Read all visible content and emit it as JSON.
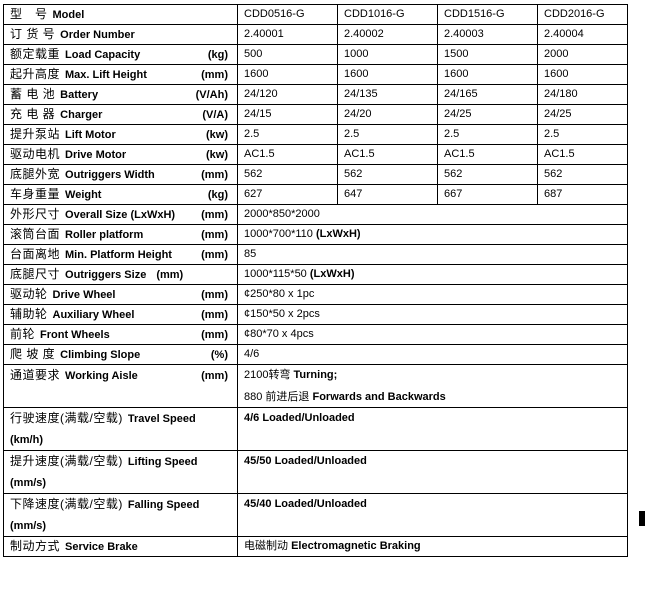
{
  "colors": {
    "border": "#000000",
    "background": "#ffffff",
    "text": "#000000"
  },
  "table": {
    "rows": [
      {
        "zh": "型　号",
        "en": "Model",
        "unit": "",
        "values": [
          "CDD0516-G",
          "CDD1016-G",
          "CDD1516-G",
          "CDD2016-G"
        ]
      },
      {
        "zh": "订 货 号",
        "en": "Order Number",
        "unit": "",
        "values": [
          "2.40001",
          "2.40002",
          "2.40003",
          "2.40004"
        ]
      },
      {
        "zh": "额定载重",
        "en": "Load Capacity",
        "unit": "(kg)",
        "values": [
          "500",
          "1000",
          "1500",
          "2000"
        ]
      },
      {
        "zh": "起升高度",
        "en": "Max. Lift Height",
        "unit": "(mm)",
        "values": [
          "1600",
          "1600",
          "1600",
          "1600"
        ]
      },
      {
        "zh": "蓄 电 池",
        "en": "Battery",
        "unit": "(V/Ah)",
        "values": [
          "24/120",
          "24/135",
          "24/165",
          "24/180"
        ]
      },
      {
        "zh": "充 电 器",
        "en": "Charger",
        "unit": "(V/A)",
        "values": [
          "24/15",
          "24/20",
          "24/25",
          "24/25"
        ]
      },
      {
        "zh": "提升泵站",
        "en": "Lift Motor",
        "unit": "(kw)",
        "values": [
          "2.5",
          "2.5",
          "2.5",
          "2.5"
        ]
      },
      {
        "zh": "驱动电机",
        "en": "Drive Motor",
        "unit": "(kw)",
        "values": [
          "AC1.5",
          "AC1.5",
          "AC1.5",
          "AC1.5"
        ]
      },
      {
        "zh": "底腿外宽",
        "en": "Outriggers Width",
        "unit": "(mm)",
        "values": [
          "562",
          "562",
          "562",
          "562"
        ]
      },
      {
        "zh": "车身重量",
        "en": "Weight",
        "unit": "(kg)",
        "values": [
          "627",
          "647",
          "667",
          "687"
        ]
      },
      {
        "zh": "外形尺寸",
        "en": "Overall Size (LxWxH)",
        "unit": "(mm)",
        "value_lines": [
          [
            {
              "t": "2000*850*2000",
              "b": false
            }
          ]
        ]
      },
      {
        "zh": "滚筒台面",
        "en": "Roller platform",
        "unit": "(mm)",
        "value_lines": [
          [
            {
              "t": "1000*700*110 ",
              "b": false
            },
            {
              "t": "(LxWxH)",
              "b": true
            }
          ]
        ]
      },
      {
        "zh": "台面离地",
        "en": "Min. Platform Height",
        "unit": "(mm)",
        "value_lines": [
          [
            {
              "t": "85",
              "b": false
            }
          ]
        ]
      },
      {
        "zh": "底腿尺寸",
        "en": "Outriggers Size",
        "unit": "(mm)",
        "unit_inline": true,
        "value_lines": [
          [
            {
              "t": "1000*115*50 ",
              "b": false
            },
            {
              "t": "(LxWxH)",
              "b": true
            }
          ]
        ]
      },
      {
        "zh": "驱动轮",
        "en": "Drive Wheel",
        "unit": "(mm)",
        "value_lines": [
          [
            {
              "t": "¢250*80 x 1pc",
              "b": false
            }
          ]
        ]
      },
      {
        "zh": "辅助轮",
        "en": "Auxiliary Wheel",
        "unit": "(mm)",
        "value_lines": [
          [
            {
              "t": "¢150*50 x 2pcs",
              "b": false
            }
          ]
        ]
      },
      {
        "zh": "前轮",
        "en": "Front Wheels",
        "unit": "(mm)",
        "value_lines": [
          [
            {
              "t": "¢80*70 x 4pcs",
              "b": false
            }
          ]
        ]
      },
      {
        "zh": "爬 坡 度",
        "en": "Climbing Slope",
        "unit": "(%)",
        "value_lines": [
          [
            {
              "t": "4/6",
              "b": false
            }
          ]
        ]
      },
      {
        "zh": "通道要求",
        "en": "Working Aisle",
        "unit": "(mm)",
        "double": true,
        "value_lines": [
          [
            {
              "t": "2100转弯 ",
              "b": false
            },
            {
              "t": "Turning;",
              "b": true
            }
          ],
          [
            {
              "t": "880 前进后退 ",
              "b": false
            },
            {
              "t": "Forwards and Backwards",
              "b": true
            }
          ]
        ]
      },
      {
        "zh": "行驶速度(满载/空载)",
        "en": "Travel Speed",
        "unit": "",
        "line2": "(km/h)",
        "double": true,
        "value_lines": [
          [
            {
              "t": "4/6 Loaded/Unloaded",
              "b": true
            }
          ]
        ]
      },
      {
        "zh": "提升速度(满载/空载)",
        "en": "Lifting Speed",
        "unit": "",
        "line2": "(mm/s)",
        "double": true,
        "value_lines": [
          [
            {
              "t": "45/50 Loaded/Unloaded",
              "b": true
            }
          ]
        ]
      },
      {
        "zh": "下降速度(满载/空载)",
        "en": "Falling Speed",
        "unit": "",
        "line2": "(mm/s)",
        "double": true,
        "value_lines": [
          [
            {
              "t": "45/40 Loaded/Unloaded",
              "b": true
            }
          ]
        ]
      },
      {
        "zh": "制动方式",
        "en": "Service Brake",
        "unit": "",
        "value_lines": [
          [
            {
              "t": "电磁制动 ",
              "b": false
            },
            {
              "t": "Electromagnetic Braking",
              "b": true
            }
          ]
        ]
      }
    ]
  }
}
